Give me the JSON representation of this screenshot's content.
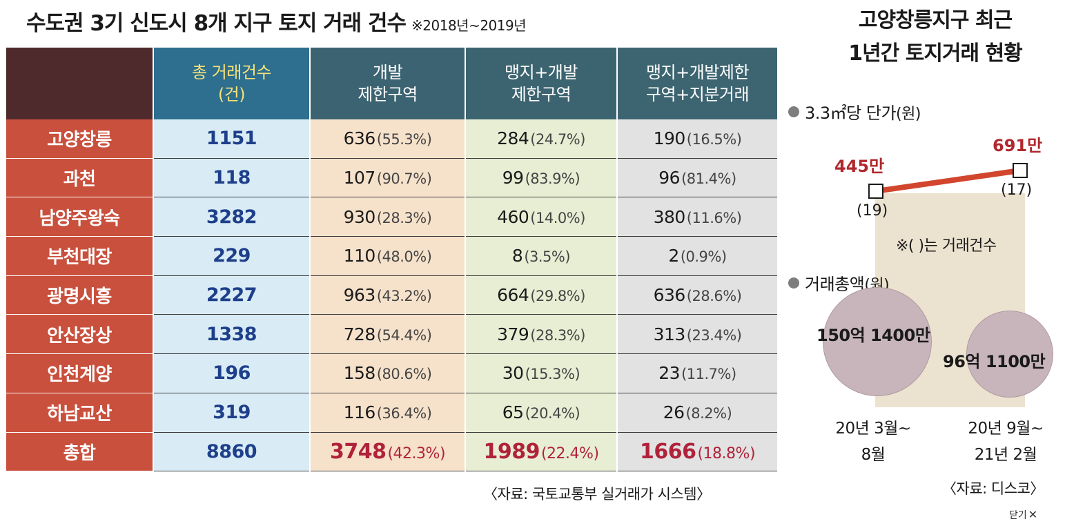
{
  "title": "수도권 3기 신도시 8개 지구 토지 거래 건수",
  "period": "※2018년~2019년",
  "table": {
    "headers": [
      {
        "line1": "총 거래건수",
        "line2": "(건)"
      },
      {
        "line1": "개발",
        "line2": "제한구역"
      },
      {
        "line1": "맹지+개발",
        "line2": "제한구역"
      },
      {
        "line1": "맹지+개발제한",
        "line2": "구역+지분거래"
      }
    ],
    "rows": [
      {
        "name": "고양창릉",
        "total": "1151",
        "g1": "636",
        "g1p": "(55.3%)",
        "g2": "284",
        "g2p": "(24.7%)",
        "g3": "190",
        "g3p": "(16.5%)"
      },
      {
        "name": "과천",
        "total": "118",
        "g1": "107",
        "g1p": "(90.7%)",
        "g2": "99",
        "g2p": "(83.9%)",
        "g3": "96",
        "g3p": "(81.4%)"
      },
      {
        "name": "남양주왕숙",
        "total": "3282",
        "g1": "930",
        "g1p": "(28.3%)",
        "g2": "460",
        "g2p": "(14.0%)",
        "g3": "380",
        "g3p": "(11.6%)"
      },
      {
        "name": "부천대장",
        "total": "229",
        "g1": "110",
        "g1p": "(48.0%)",
        "g2": "8",
        "g2p": "(3.5%)",
        "g3": "2",
        "g3p": "(0.9%)"
      },
      {
        "name": "광명시흥",
        "total": "2227",
        "g1": "963",
        "g1p": "(43.2%)",
        "g2": "664",
        "g2p": "(29.8%)",
        "g3": "636",
        "g3p": "(28.6%)"
      },
      {
        "name": "안산장상",
        "total": "1338",
        "g1": "728",
        "g1p": "(54.4%)",
        "g2": "379",
        "g2p": "(28.3%)",
        "g3": "313",
        "g3p": "(23.4%)"
      },
      {
        "name": "인천계양",
        "total": "196",
        "g1": "158",
        "g1p": "(80.6%)",
        "g2": "30",
        "g2p": "(15.3%)",
        "g3": "23",
        "g3p": "(11.7%)"
      },
      {
        "name": "하남교산",
        "total": "319",
        "g1": "116",
        "g1p": "(36.4%)",
        "g2": "65",
        "g2p": "(20.4%)",
        "g3": "26",
        "g3p": "(8.2%)"
      }
    ],
    "sum": {
      "name": "총합",
      "total": "8860",
      "g1": "3748",
      "g1p": "(42.3%)",
      "g2": "1989",
      "g2p": "(22.4%)",
      "g3": "1666",
      "g3p": "(18.8%)"
    }
  },
  "source_left": "〈자료: 국토교통부 실거래가 시스템〉",
  "side": {
    "title_line1": "고양창릉지구 최근",
    "title_line2": "1년간 토지거래 현황",
    "price_label": "3.3㎡당 단가",
    "price_unit": "(원)",
    "amount_label": "거래총액",
    "amount_unit": "(원)",
    "note": "※(   )는 거래건수",
    "source": "〈자료: 디스코〉",
    "line_color": "#d2462e"
  },
  "chart_data": [
    {
      "type": "line",
      "categories": [
        "20년 3월~8월",
        "20년 9월~21년 2월"
      ],
      "series": [
        {
          "values": [
            445,
            691
          ],
          "labels": [
            "445만",
            "691만"
          ],
          "counts": [
            "(19)",
            "(17)"
          ]
        }
      ],
      "ylabel": "3.3㎡당 단가(원)"
    },
    {
      "type": "bubble",
      "categories": [
        "20년 3월~8월",
        "20년 9월~21년 2월"
      ],
      "values": [
        15014000000,
        9611000000
      ],
      "labels": [
        "150억 1400만",
        "96억 1100만"
      ],
      "ylabel": "거래총액(원)"
    }
  ],
  "periods": [
    {
      "line1": "20년 3월~",
      "line2": "8월"
    },
    {
      "line1": "20년 9월~",
      "line2": "21년 2월"
    }
  ],
  "close_label": "닫기",
  "close_icon_glyph": "✕"
}
